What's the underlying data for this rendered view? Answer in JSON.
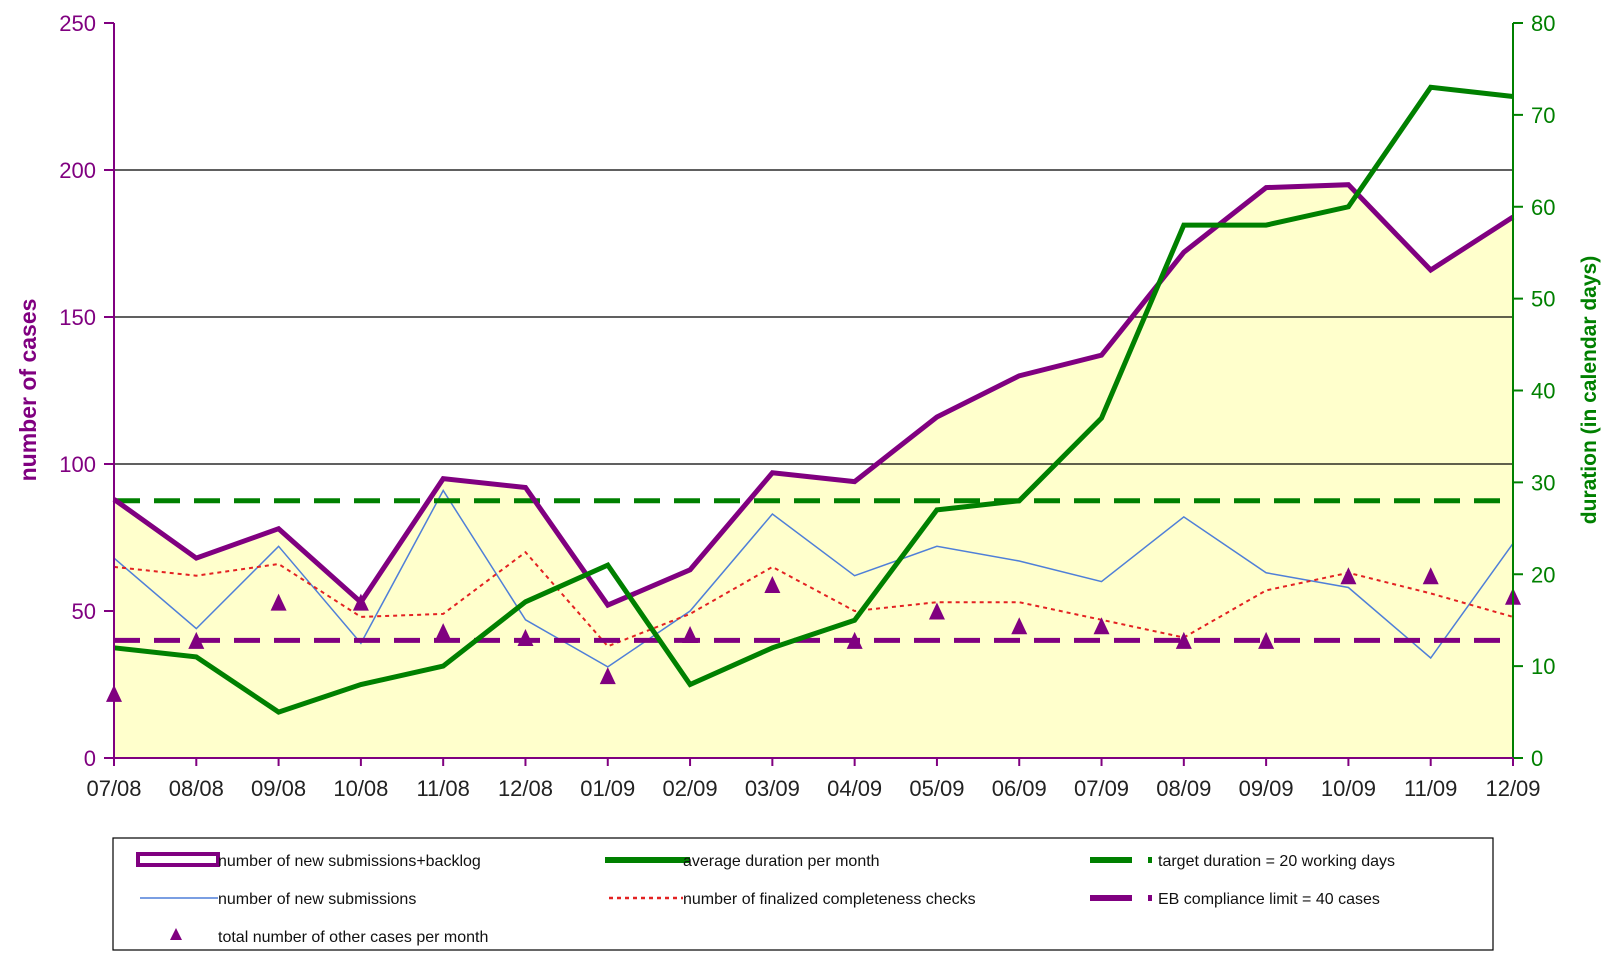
{
  "chart_data": {
    "type": "line",
    "categories": [
      "07/08",
      "08/08",
      "09/08",
      "10/08",
      "11/08",
      "12/08",
      "01/09",
      "02/09",
      "03/09",
      "04/09",
      "05/09",
      "06/09",
      "07/09",
      "08/09",
      "09/09",
      "10/09",
      "11/09",
      "12/09"
    ],
    "y_left": {
      "label": "number of cases",
      "range": [
        0,
        250
      ],
      "ticks": [
        0,
        50,
        100,
        150,
        200,
        250
      ],
      "color": "#800080"
    },
    "y_right": {
      "label": "duration (in calendar days)",
      "range": [
        0,
        80
      ],
      "ticks": [
        0,
        10,
        20,
        30,
        40,
        50,
        60,
        70,
        80
      ],
      "color": "#008000"
    },
    "grid": {
      "horizontal_at_left": [
        100,
        150,
        200
      ]
    },
    "area_fill_color": "#ffffcc",
    "series": [
      {
        "key": "backlog",
        "name": "number of new submissions+backlog",
        "axis": "left",
        "style": "thick-line-area",
        "color": "#800080",
        "values": [
          88,
          68,
          78,
          53,
          95,
          92,
          52,
          64,
          97,
          94,
          116,
          130,
          137,
          172,
          194,
          195,
          166,
          184
        ]
      },
      {
        "key": "duration",
        "name": "average duration per month",
        "axis": "right",
        "style": "thick-line",
        "color": "#008000",
        "values": [
          12,
          11,
          5,
          8,
          10,
          17,
          21,
          8,
          12,
          15,
          27,
          28,
          37,
          58,
          58,
          60,
          73,
          72
        ]
      },
      {
        "key": "target",
        "name": "target duration = 20 working days",
        "axis": "right",
        "style": "dashed-thick",
        "color": "#008000",
        "values": [
          28,
          28,
          28,
          28,
          28,
          28,
          28,
          28,
          28,
          28,
          28,
          28,
          28,
          28,
          28,
          28,
          28,
          28
        ]
      },
      {
        "key": "new",
        "name": "number of new submissions",
        "axis": "left",
        "style": "thin-line",
        "color": "#4f7fd8",
        "values": [
          68,
          44,
          72,
          39,
          91,
          47,
          31,
          50,
          83,
          62,
          72,
          67,
          60,
          82,
          63,
          58,
          34,
          73
        ]
      },
      {
        "key": "finalized",
        "name": "number of finalized completeness checks",
        "axis": "left",
        "style": "dotted",
        "color": "#e32222",
        "values": [
          65,
          62,
          66,
          48,
          49,
          70,
          38,
          49,
          65,
          50,
          53,
          53,
          47,
          41,
          57,
          63,
          56,
          48
        ]
      },
      {
        "key": "compliance",
        "name": "EB compliance limit = 40 cases",
        "axis": "left",
        "style": "dashed-thick",
        "color": "#800080",
        "values": [
          40,
          40,
          40,
          40,
          40,
          40,
          40,
          40,
          40,
          40,
          40,
          40,
          40,
          40,
          40,
          40,
          40,
          40
        ]
      },
      {
        "key": "other",
        "name": "total number of other cases per month",
        "axis": "left",
        "style": "triangle-markers",
        "color": "#800080",
        "values": [
          22,
          40,
          53,
          53,
          43,
          41,
          28,
          42,
          59,
          40,
          50,
          45,
          45,
          40,
          40,
          62,
          62,
          55
        ]
      }
    ],
    "legend": {
      "placement": "bottom",
      "rows": [
        [
          "backlog",
          "duration",
          "target"
        ],
        [
          "new",
          "finalized",
          "compliance"
        ],
        [
          "other"
        ]
      ]
    }
  }
}
